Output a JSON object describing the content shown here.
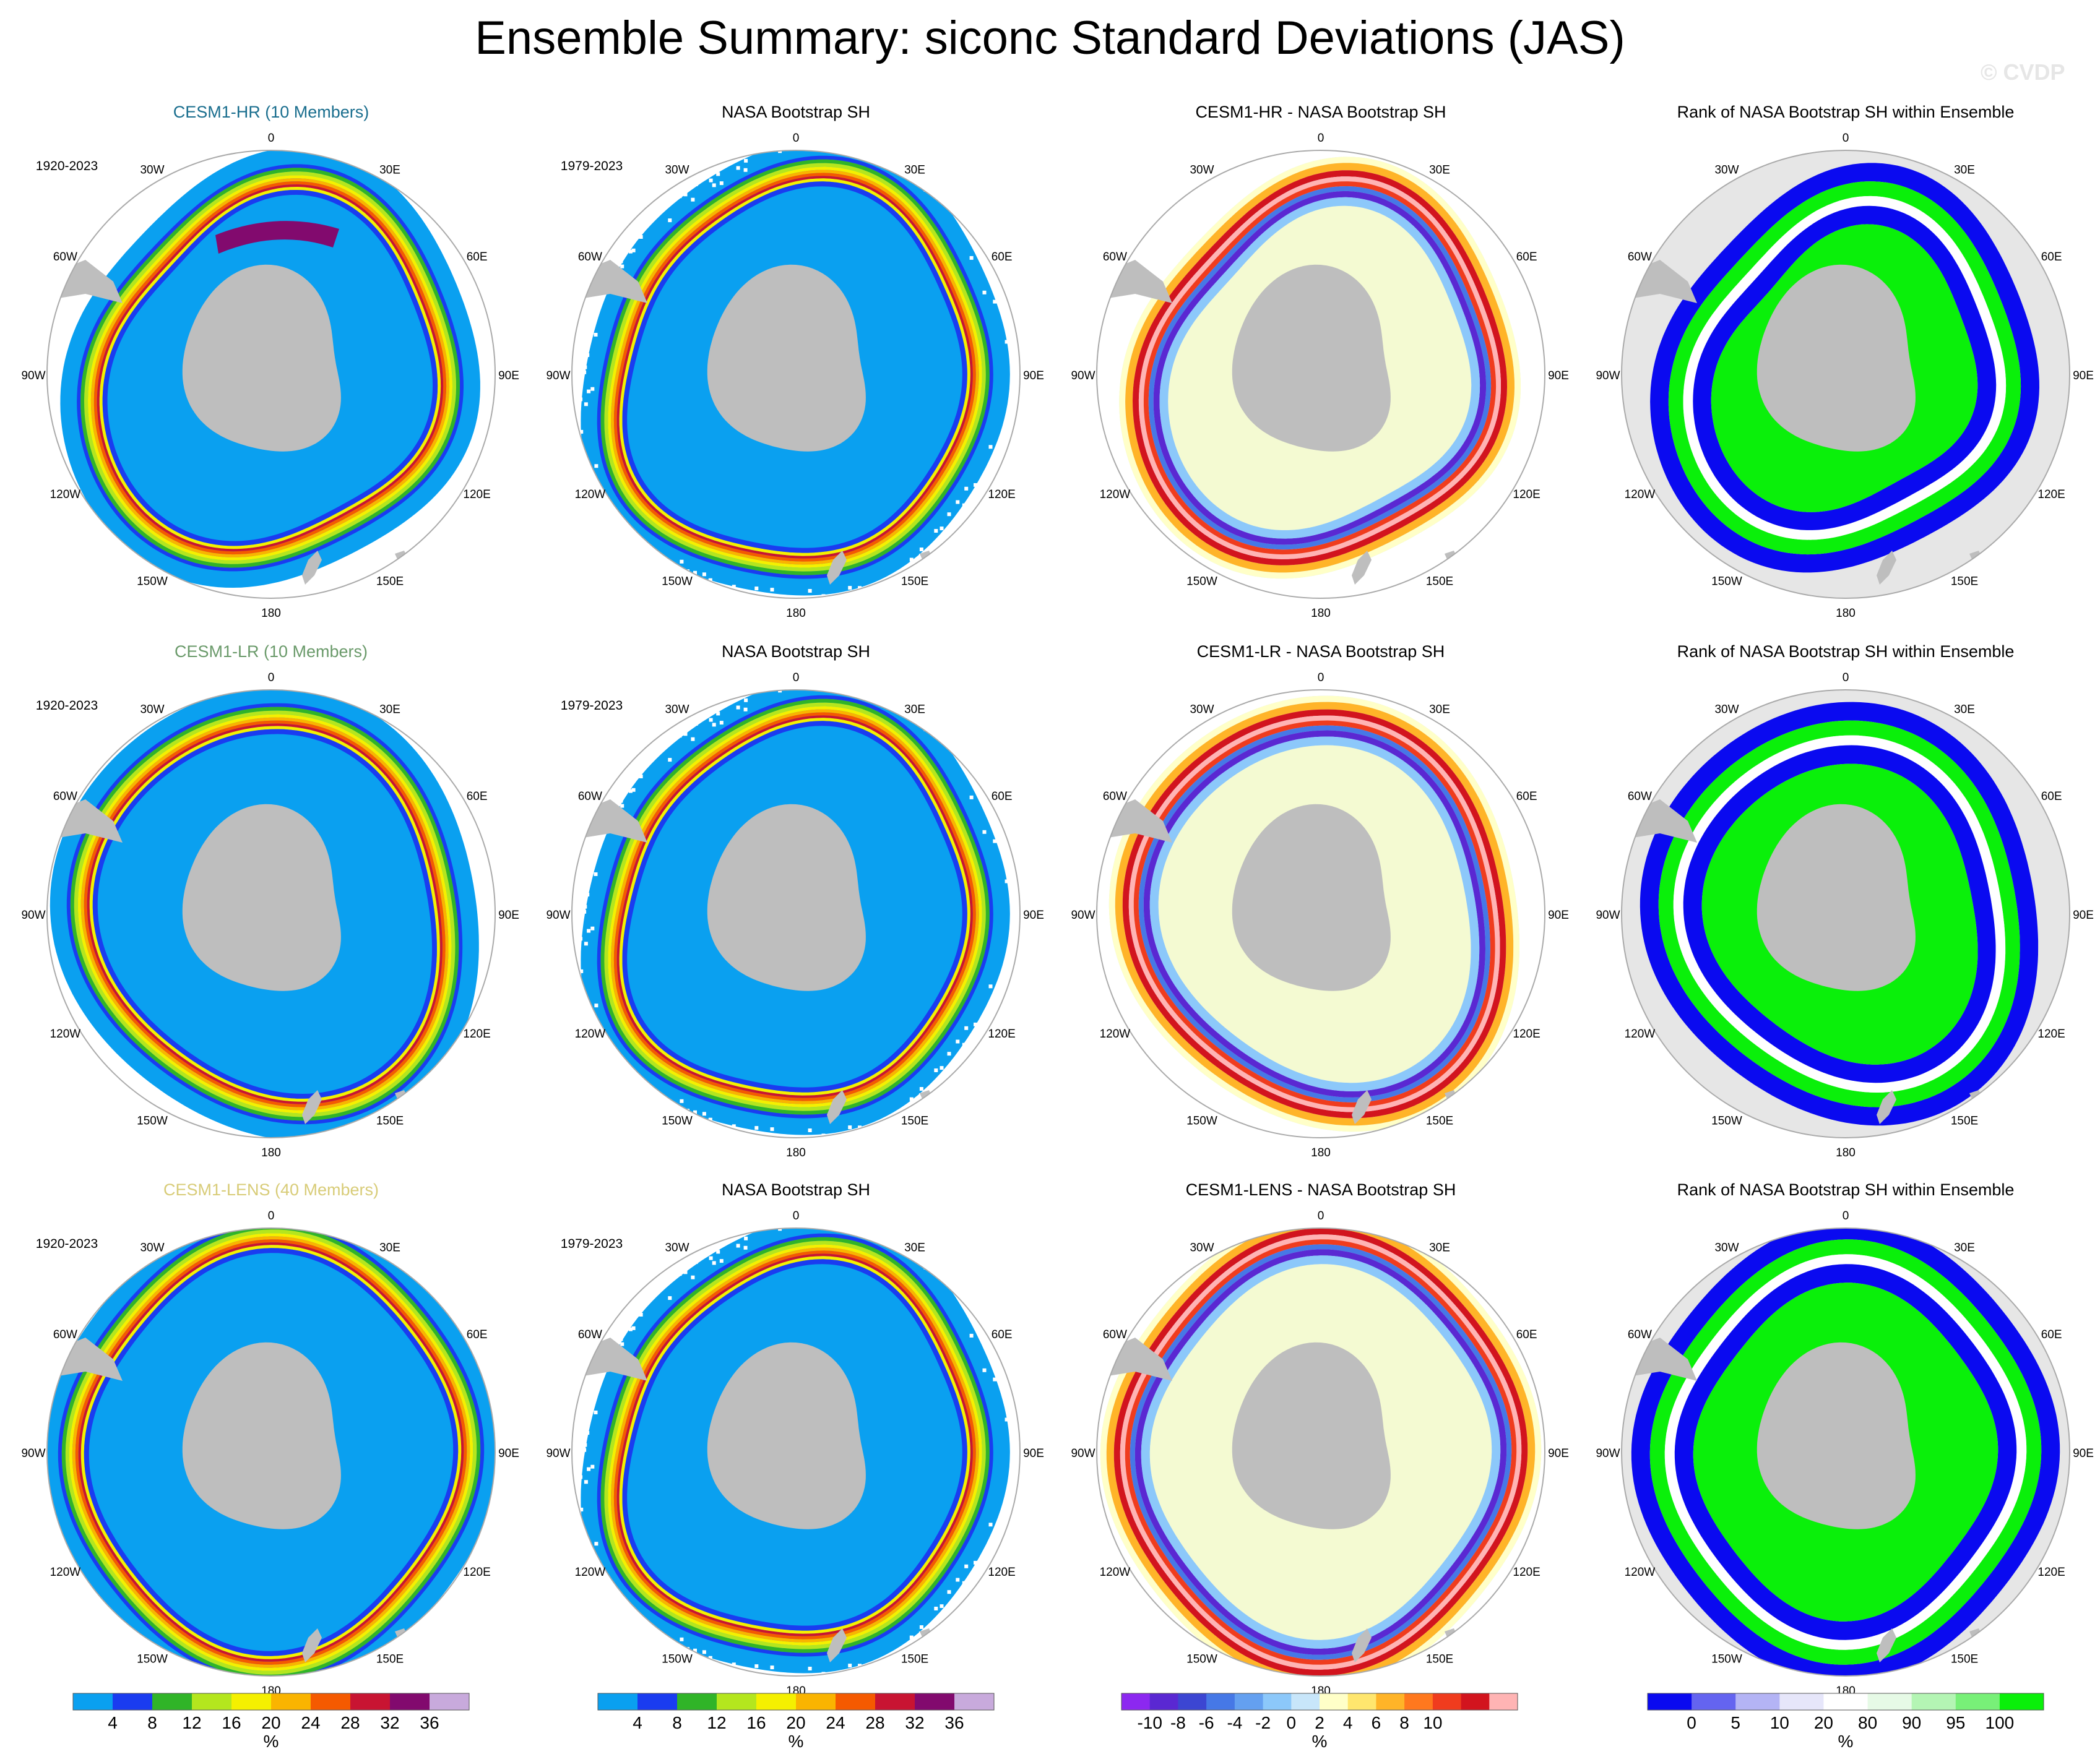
{
  "title": "Ensemble Summary: siconc Standard Deviations (JAS)",
  "watermark": "© CVDP",
  "colors": {
    "land": "#bebebe",
    "rank_background": "#e6e6e6",
    "ocean_background": "#ffffff",
    "circle_outline": "#aaaaaa",
    "row_title_colors": [
      "#1a6e8e",
      "#6a9a6a",
      "#d8cc78"
    ]
  },
  "longitude_labels": [
    "0",
    "30E",
    "60E",
    "90E",
    "120E",
    "150E",
    "180",
    "150W",
    "120W",
    "90W",
    "60W",
    "30W"
  ],
  "rows": [
    {
      "panels": [
        {
          "title": "CESM1-HR (10 Members)",
          "period": "1920-2023",
          "kind": "std",
          "pattern": "hr"
        },
        {
          "title": "NASA Bootstrap SH",
          "period": "1979-2023",
          "kind": "std",
          "pattern": "obs"
        },
        {
          "title": "CESM1-HR - NASA Bootstrap SH",
          "period": "",
          "kind": "diff",
          "pattern": "hr"
        },
        {
          "title": "Rank of NASA Bootstrap SH within Ensemble",
          "period": "",
          "kind": "rank",
          "pattern": "hr"
        }
      ]
    },
    {
      "panels": [
        {
          "title": "CESM1-LR (10 Members)",
          "period": "1920-2023",
          "kind": "std",
          "pattern": "lr"
        },
        {
          "title": "NASA Bootstrap SH",
          "period": "1979-2023",
          "kind": "std",
          "pattern": "obs"
        },
        {
          "title": "CESM1-LR - NASA Bootstrap SH",
          "period": "",
          "kind": "diff",
          "pattern": "lr"
        },
        {
          "title": "Rank of NASA Bootstrap SH within Ensemble",
          "period": "",
          "kind": "rank",
          "pattern": "lr"
        }
      ]
    },
    {
      "panels": [
        {
          "title": "CESM1-LENS (40 Members)",
          "period": "1920-2023",
          "kind": "std",
          "pattern": "lens"
        },
        {
          "title": "NASA Bootstrap SH",
          "period": "1979-2023",
          "kind": "std",
          "pattern": "obs"
        },
        {
          "title": "CESM1-LENS - NASA Bootstrap SH",
          "period": "",
          "kind": "diff",
          "pattern": "lens"
        },
        {
          "title": "Rank of NASA Bootstrap SH within Ensemble",
          "period": "",
          "kind": "rank",
          "pattern": "lens"
        }
      ]
    }
  ],
  "chart_data": [
    {
      "type": "colorbar",
      "name": "standard deviation",
      "unit": "%",
      "boundaries": [
        "4",
        "8",
        "12",
        "16",
        "20",
        "24",
        "28",
        "32",
        "36"
      ],
      "colors": [
        "#0aa0f0",
        "#1a3cf0",
        "#30b428",
        "#b4e61e",
        "#f5f000",
        "#fab400",
        "#f55a00",
        "#c81432",
        "#820a6e",
        "#c8aadc"
      ]
    },
    {
      "type": "colorbar",
      "name": "standard deviation",
      "unit": "%",
      "boundaries": [
        "4",
        "8",
        "12",
        "16",
        "20",
        "24",
        "28",
        "32",
        "36"
      ],
      "colors": [
        "#0aa0f0",
        "#1a3cf0",
        "#30b428",
        "#b4e61e",
        "#f5f000",
        "#fab400",
        "#f55a00",
        "#c81432",
        "#820a6e",
        "#c8aadc"
      ]
    },
    {
      "type": "colorbar",
      "name": "difference",
      "unit": "%",
      "boundaries": [
        "-10",
        "-8",
        "-6",
        "-4",
        "-2",
        "0",
        "2",
        "4",
        "6",
        "8",
        "10"
      ],
      "colors": [
        "#8c28f0",
        "#5a28d2",
        "#3c46d2",
        "#4678e6",
        "#64a0f0",
        "#8cc8fa",
        "#c8e6fa",
        "#ffffc8",
        "#ffe66e",
        "#ffb428",
        "#ff781e",
        "#f03c1e",
        "#d2141e",
        "#ffb4b4"
      ]
    },
    {
      "type": "colorbar",
      "name": "rank",
      "unit": "%",
      "boundaries": [
        "0",
        "5",
        "10",
        "20",
        "80",
        "90",
        "95",
        "100"
      ],
      "colors": [
        "#0a0af0",
        "#6464f0",
        "#b4b4f5",
        "#e6e6fa",
        "#ffffff",
        "#e6fae6",
        "#b4f5b4",
        "#78f078",
        "#0af00a"
      ]
    }
  ]
}
